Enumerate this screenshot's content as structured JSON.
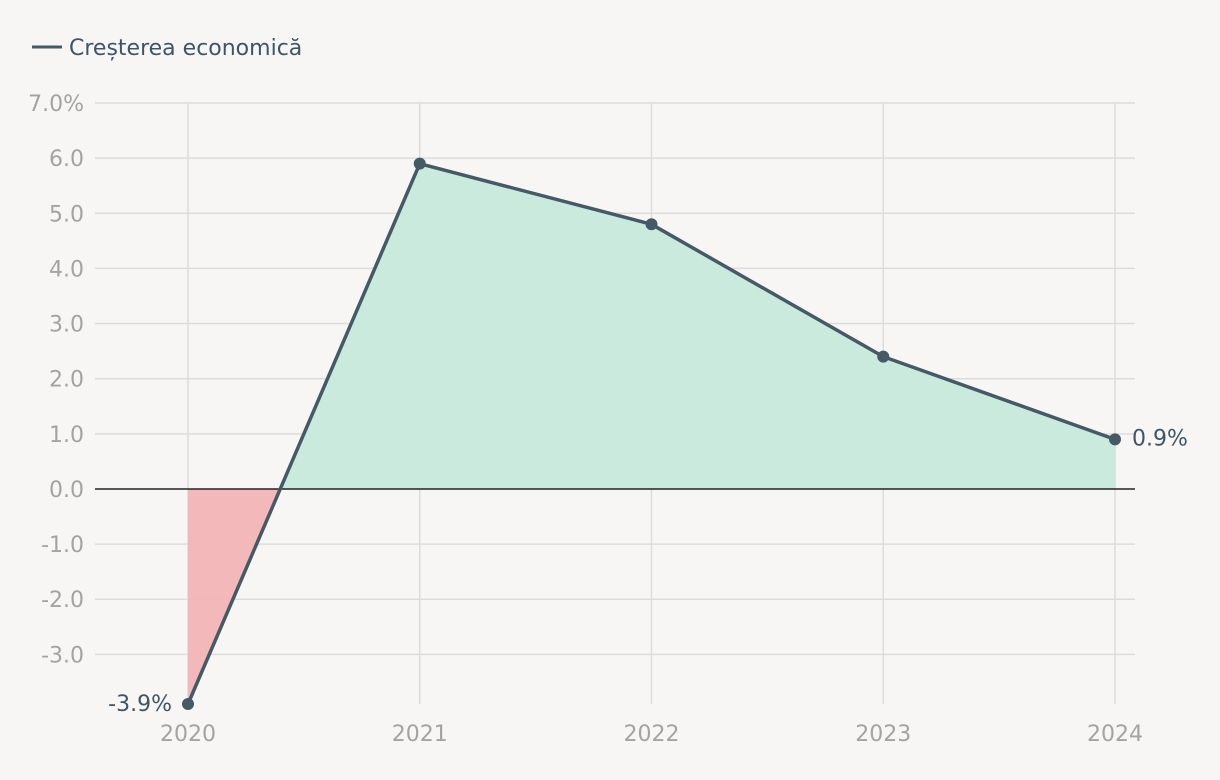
{
  "chart_data": {
    "type": "area",
    "x": [
      "2020",
      "2021",
      "2022",
      "2023",
      "2024"
    ],
    "series": [
      {
        "name": "Creșterea economică",
        "values": [
          -3.9,
          5.9,
          4.8,
          2.4,
          0.9
        ],
        "color": "#455a64"
      }
    ],
    "y_ticks": [
      "7.0%",
      "6.0",
      "5.0",
      "4.0",
      "3.0",
      "2.0",
      "1.0",
      "0.0",
      "-1.0",
      "-2.0",
      "-3.0"
    ],
    "y_tick_values": [
      7,
      6,
      5,
      4,
      3,
      2,
      1,
      0,
      -1,
      -2,
      -3
    ],
    "ylim": [
      -3.9,
      7.0
    ],
    "end_labels": {
      "first": "-3.9%",
      "last": "0.9%"
    },
    "positive_fill": "#c8e9dc",
    "negative_fill": "#f2b4b5",
    "grid": true,
    "legend_position": "top-left"
  }
}
